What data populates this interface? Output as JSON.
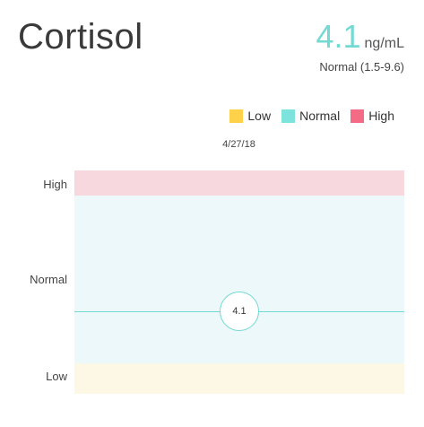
{
  "header": {
    "title": "Cortisol",
    "value": "4.1",
    "unit": "ng/mL",
    "range_text": "Normal (1.5-9.6)"
  },
  "legend": [
    {
      "label": "Low",
      "color": "#fdd24a"
    },
    {
      "label": "Normal",
      "color": "#7ee3dc"
    },
    {
      "label": "High",
      "color": "#f36b85"
    }
  ],
  "colors": {
    "accent": "#72d9d3",
    "band_high": "#f6d8de",
    "band_normal": "#edf8fa",
    "band_low": "#fdf7e6"
  },
  "chart_data": {
    "type": "scatter",
    "date": "4/27/18",
    "band_labels": [
      "High",
      "Normal",
      "Low"
    ],
    "point": {
      "value": 4.1,
      "label": "4.1"
    }
  }
}
